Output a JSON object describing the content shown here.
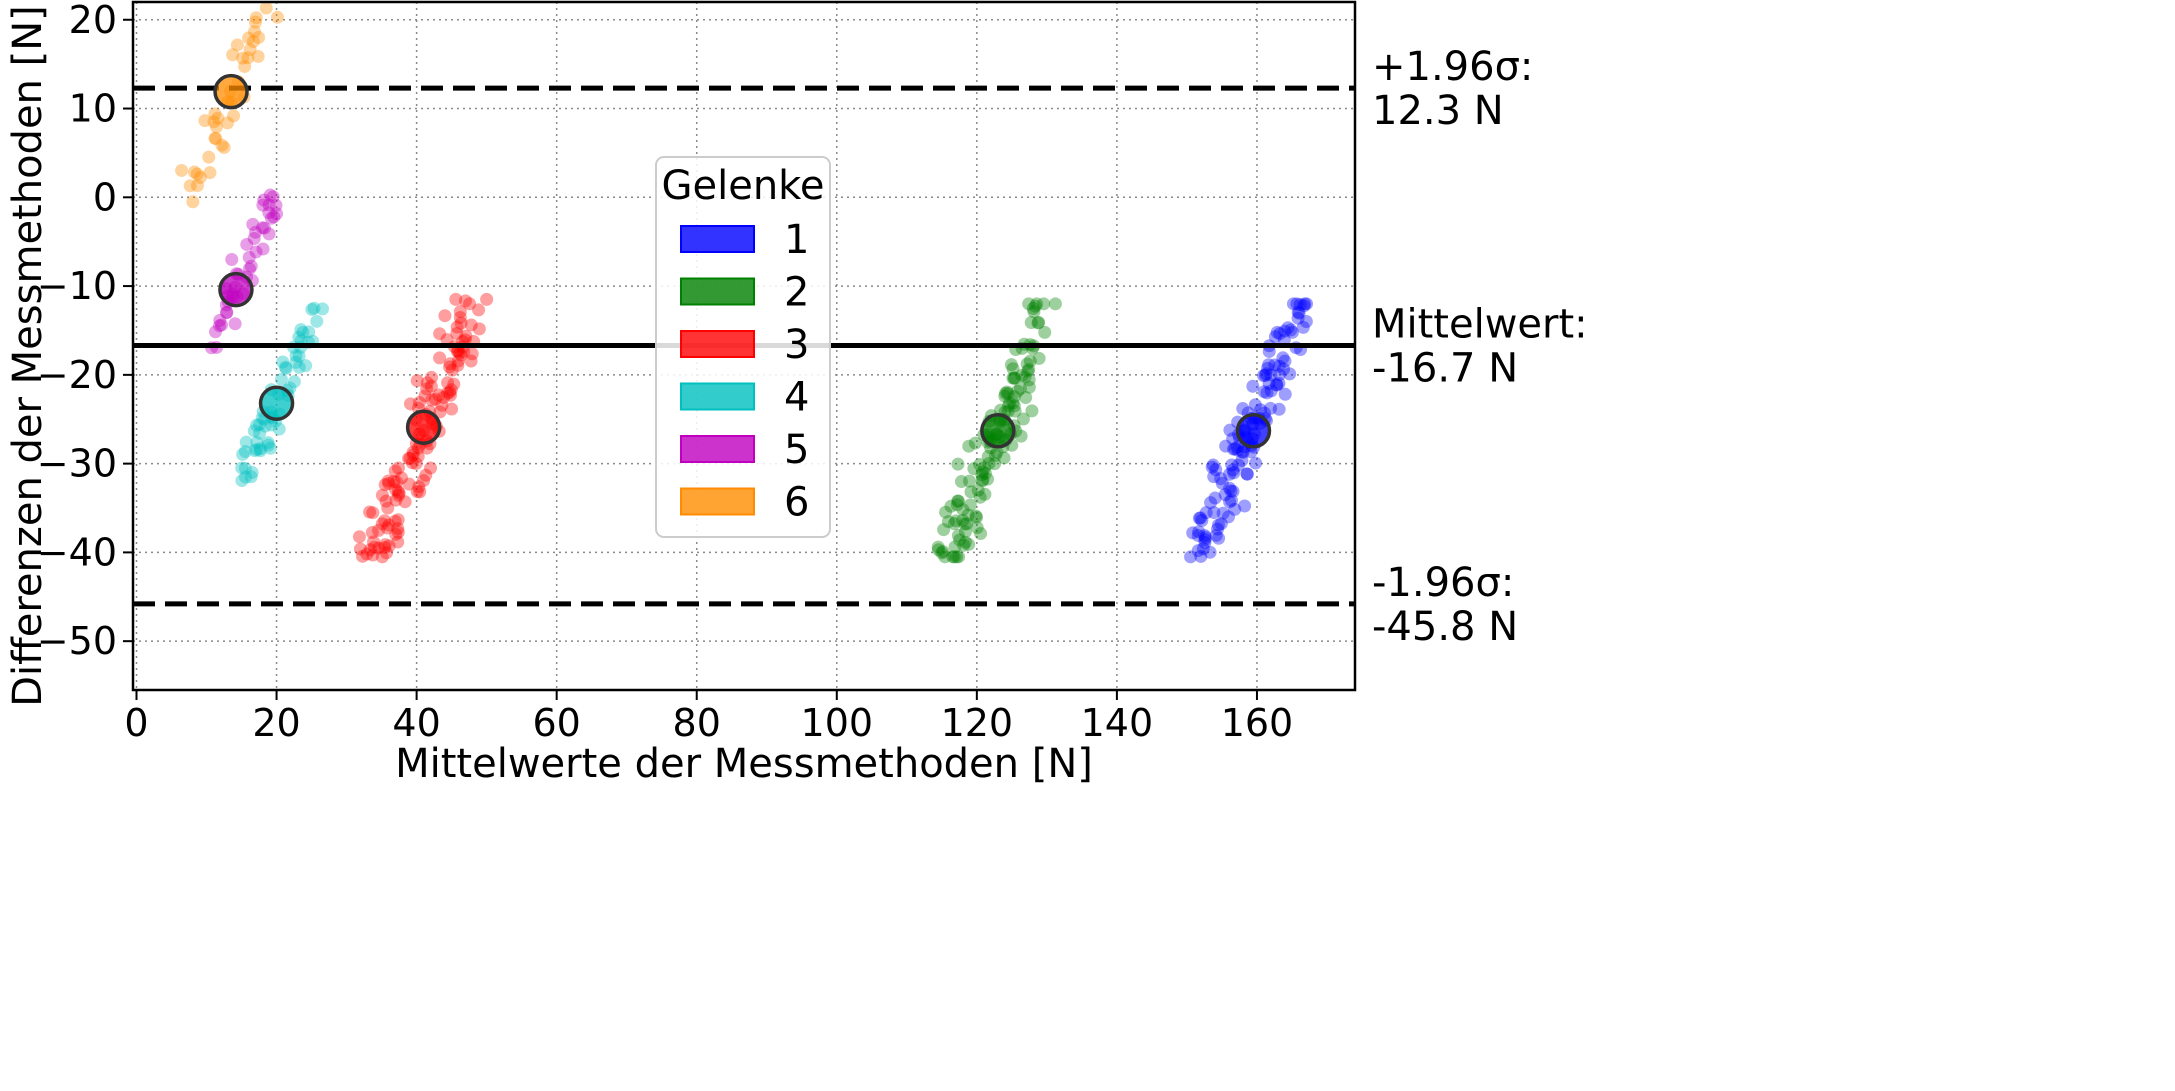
{
  "chart_data": {
    "type": "scatter",
    "title": "",
    "xlabel": "Mittelwerte der Messmethoden [N]",
    "ylabel": "Differenzen der Messmethoden [N]",
    "xlim": [
      -0.5,
      174
    ],
    "ylim": [
      -55.5,
      22
    ],
    "xticks": [
      0,
      20,
      40,
      60,
      80,
      100,
      120,
      140,
      160
    ],
    "yticks": [
      20,
      10,
      0,
      -10,
      -20,
      -30,
      -40,
      -50
    ],
    "grid": true,
    "legend": {
      "title": "Gelenke",
      "placement": "center"
    },
    "reference_lines": [
      {
        "value": 12.3,
        "style": "dashed",
        "label_line1": "+1.96σ:",
        "label_line2": "12.3 N"
      },
      {
        "value": -16.7,
        "style": "solid",
        "label_line1": "Mittelwert:",
        "label_line2": "-16.7 N"
      },
      {
        "value": -45.8,
        "style": "dashed",
        "label_line1": "-1.96σ:",
        "label_line2": "-45.8 N"
      }
    ],
    "series": [
      {
        "name": "1",
        "color": "#0000ff",
        "center": [
          159.5,
          -26.3
        ],
        "x_range": [
          152,
          166.5
        ],
        "y_range": [
          -40.5,
          -12
        ],
        "count": 130,
        "seed": 11
      },
      {
        "name": "2",
        "color": "#008000",
        "center": [
          123,
          -26.3
        ],
        "x_range": [
          116,
          130
        ],
        "y_range": [
          -40.5,
          -12
        ],
        "count": 130,
        "seed": 23
      },
      {
        "name": "3",
        "color": "#ff0000",
        "center": [
          41,
          -25.9
        ],
        "x_range": [
          33.5,
          48.5
        ],
        "y_range": [
          -40.5,
          -11.5
        ],
        "count": 130,
        "seed": 37
      },
      {
        "name": "4",
        "color": "#00bfbf",
        "center": [
          20,
          -23.2
        ],
        "x_range": [
          15.5,
          25.5
        ],
        "y_range": [
          -32,
          -12.5
        ],
        "count": 60,
        "seed": 53
      },
      {
        "name": "5",
        "color": "#bf00bf",
        "center": [
          14.2,
          -10.4
        ],
        "x_range": [
          10.5,
          20
        ],
        "y_range": [
          -17.5,
          0.5
        ],
        "count": 45,
        "seed": 71
      },
      {
        "name": "6",
        "color": "#ff8c00",
        "center": [
          13.5,
          11.9
        ],
        "x_range": [
          7,
          19
        ],
        "y_range": [
          -0.5,
          22
        ],
        "count": 40,
        "seed": 89
      }
    ]
  }
}
